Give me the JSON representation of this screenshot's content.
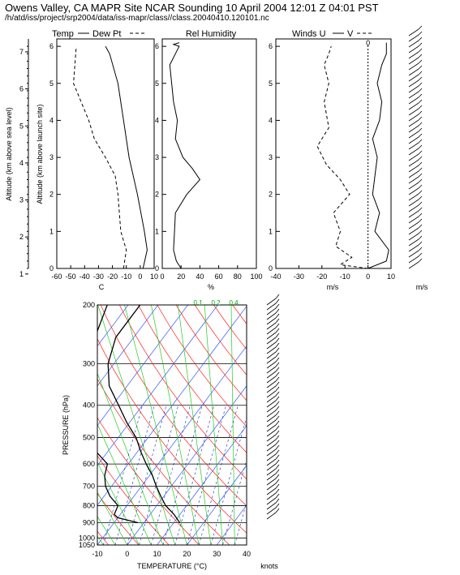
{
  "header": {
    "title": "Owens Valley, CA MAPR Site NCAR Sounding 10 April 2004 12:01 Z 04:01 PST",
    "path": "/h/atd/iss/project/srp2004/data/iss-mapr/class//class.20040410.120101.nc"
  },
  "chart_data": [
    {
      "type": "line",
      "title": "Temp — Dew Pt - -",
      "ylabel_outer": "Altitude (km above sea level)",
      "ylabel_inner": "Altitude (km above launch site)",
      "xlabel": "C",
      "xlim": [
        -60,
        10
      ],
      "ylim": [
        0,
        6.2
      ],
      "outer_ticks": [
        "1",
        "2",
        "3",
        "4",
        "5",
        "6",
        "7"
      ],
      "y_ticks": [
        "0",
        "1",
        "2",
        "3",
        "4",
        "5",
        "6"
      ],
      "x_ticks": [
        "-60",
        "-50",
        "-40",
        "-30",
        "-20",
        "-10",
        "0",
        "10"
      ],
      "series": [
        {
          "name": "Temp",
          "x": [
            2,
            5,
            3,
            -2,
            -8,
            -12,
            -16,
            -22,
            -25
          ],
          "y": [
            0,
            0.5,
            1,
            2,
            3,
            4,
            5,
            5.8,
            6
          ]
        },
        {
          "name": "Dew Pt",
          "x": [
            -12,
            -10,
            -14,
            -15,
            -16,
            -18,
            -25,
            -33,
            -37,
            -48,
            -46
          ],
          "y": [
            0,
            0.5,
            1,
            1.5,
            2,
            2.5,
            3,
            3.5,
            4,
            5,
            6
          ]
        }
      ]
    },
    {
      "type": "line",
      "title": "Rel Humidity",
      "xlabel": "%",
      "xlim": [
        0,
        100
      ],
      "ylim": [
        0,
        6.2
      ],
      "y_ticks": [
        "0",
        "1",
        "2",
        "3",
        "4",
        "5",
        "6"
      ],
      "x_ticks": [
        "0",
        "20",
        "40",
        "60",
        "80",
        "100"
      ],
      "series": [
        {
          "name": "RH",
          "x": [
            20,
            15,
            12,
            13,
            14,
            26,
            40,
            32,
            22,
            14,
            16,
            12,
            10,
            8,
            14,
            18,
            12,
            18
          ],
          "y": [
            0,
            0.2,
            0.5,
            1,
            1.5,
            2,
            2.4,
            2.7,
            3,
            3.5,
            4,
            4.5,
            5,
            5.5,
            5.8,
            6,
            6.05,
            6.1
          ]
        }
      ]
    },
    {
      "type": "line",
      "title": "Winds U — V - -",
      "xlabel": "m/s",
      "xlim": [
        -40,
        10
      ],
      "ylim": [
        0,
        6.2
      ],
      "y_ticks": [
        "0",
        "1",
        "2",
        "3",
        "4",
        "5",
        "6"
      ],
      "x_ticks": [
        "-40",
        "-30",
        "-20",
        "-10",
        "0",
        "10"
      ],
      "zero_label": "0",
      "series": [
        {
          "name": "U",
          "x": [
            0,
            8,
            9,
            3,
            5,
            2,
            3,
            4,
            2,
            5,
            6,
            4,
            6,
            8,
            8
          ],
          "y": [
            0,
            0.2,
            0.5,
            1,
            1.5,
            2,
            2.5,
            3,
            3.5,
            4,
            4.5,
            5,
            5.5,
            5.8,
            6.1
          ]
        },
        {
          "name": "V",
          "x": [
            0,
            -12,
            -7,
            -14,
            -12,
            -15,
            -8,
            -12,
            -18,
            -22,
            -17,
            -19,
            -17,
            -19,
            -17,
            -16
          ],
          "y": [
            0,
            0.1,
            0.3,
            0.6,
            1,
            1.5,
            2,
            2.4,
            2.8,
            3.3,
            3.8,
            4.5,
            5,
            5.5,
            5.8,
            6
          ]
        }
      ],
      "barbs_unit": "m/s"
    },
    {
      "type": "line",
      "title": "Skew-T log-P",
      "xlabel": "TEMPERATURE (°C)",
      "ylabel": "PRESSURE (hPa)",
      "xlim": [
        -10,
        40
      ],
      "ylim": [
        1050,
        200
      ],
      "p_ticks": [
        "200",
        "300",
        "400",
        "500",
        "600",
        "700",
        "800",
        "900",
        "1000",
        "1050"
      ],
      "t_ticks": [
        "-10",
        "0",
        "10",
        "20",
        "30",
        "40"
      ],
      "mixing_ratio_top_labels": [
        "0.1",
        "0.2",
        "0.4"
      ],
      "barbs_unit": "knots",
      "series": [
        {
          "name": "Temperature",
          "p": [
            900,
            850,
            800,
            750,
            700,
            650,
            600,
            550,
            500,
            450,
            400,
            350,
            300,
            250,
            200
          ],
          "t": [
            12,
            8,
            3,
            -1,
            -5,
            -9,
            -14,
            -19,
            -24,
            -31,
            -38,
            -46,
            -52,
            -56,
            -56
          ]
        },
        {
          "name": "Dew Point",
          "p": [
            900,
            870,
            850,
            800,
            750,
            700,
            650,
            600,
            550,
            500,
            450,
            400,
            350,
            300,
            250,
            200
          ],
          "t": [
            -2,
            -10,
            -12,
            -13,
            -18,
            -22,
            -25,
            -27,
            -34,
            -41,
            -50,
            -51,
            -56,
            -60,
            -63,
            -67
          ]
        }
      ]
    }
  ]
}
